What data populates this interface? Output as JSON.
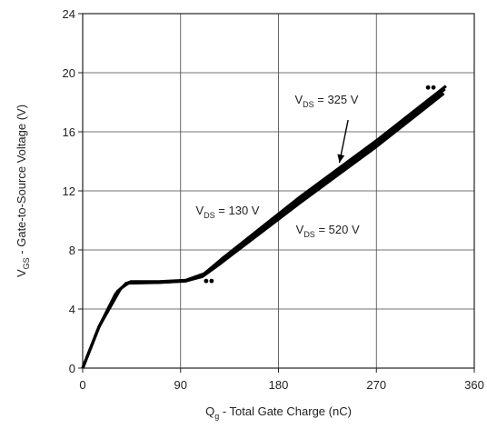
{
  "chart_data": {
    "type": "line",
    "xlabel": {
      "main": "Q",
      "sub": "g",
      "rest": " - Total Gate Charge (nC)"
    },
    "ylabel": {
      "main": "V",
      "sub": "GS",
      "rest": " - Gate-to-Source Voltage (V)"
    },
    "xlim": [
      0,
      360
    ],
    "ylim": [
      0,
      24
    ],
    "xticks": [
      "0",
      "90",
      "180",
      "270",
      "360"
    ],
    "xtick_values": [
      0,
      90,
      180,
      270,
      360
    ],
    "yticks": [
      "0",
      "4",
      "8",
      "12",
      "16",
      "20",
      "24"
    ],
    "ytick_values": [
      0,
      4,
      8,
      12,
      16,
      20,
      24
    ],
    "grid": true,
    "series": [
      {
        "name": "VDS = 130 V",
        "x": [
          0,
          15,
          30,
          40,
          70,
          95,
          110,
          125,
          200,
          270,
          332
        ],
        "y": [
          0,
          2.8,
          5.0,
          5.75,
          5.8,
          5.9,
          6.2,
          7.0,
          11.2,
          15.0,
          18.6
        ]
      },
      {
        "name": "VDS = 325 V",
        "x": [
          0,
          15,
          32,
          42,
          70,
          95,
          110,
          126,
          200,
          270,
          333
        ],
        "y": [
          0,
          2.8,
          5.2,
          5.8,
          5.8,
          5.9,
          6.3,
          7.2,
          11.4,
          15.2,
          18.9
        ]
      },
      {
        "name": "VDS = 520 V",
        "x": [
          0,
          15,
          35,
          44,
          70,
          95,
          112,
          128,
          200,
          270,
          334
        ],
        "y": [
          0,
          2.8,
          5.4,
          5.85,
          5.85,
          5.95,
          6.4,
          7.4,
          11.6,
          15.4,
          19.1
        ]
      }
    ],
    "annotations": [
      {
        "main": "V",
        "sub": "DS",
        "rest": " = 325 V",
        "x": 195,
        "y": 17.9
      },
      {
        "main": "V",
        "sub": "DS",
        "rest": " = 130 V",
        "x": 104,
        "y": 10.4
      },
      {
        "main": "V",
        "sub": "DS",
        "rest": " = 520 V",
        "x": 196,
        "y": 9.1
      }
    ],
    "arrow": {
      "from": [
        244,
        16.8
      ],
      "to": [
        236,
        13.9
      ]
    },
    "markers": [
      {
        "x": 116,
        "y": 5.9
      },
      {
        "x": 320,
        "y": 19.0
      }
    ],
    "colors": {
      "line": "#000000",
      "grid": "#444444",
      "text": "#222222"
    }
  }
}
